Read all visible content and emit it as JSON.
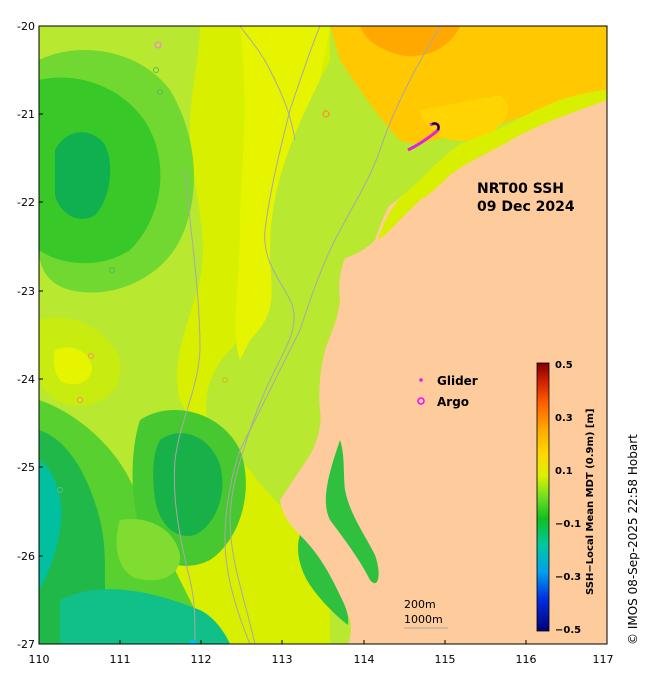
{
  "map": {
    "title_line1": "NRT00 SSH",
    "title_line2": "09 Dec 2024",
    "copyright": "© IMOS 08-Sep-2025 22:58 Hobart",
    "lon_ticks": [
      "110",
      "111",
      "112",
      "113",
      "114",
      "115",
      "116",
      "117"
    ],
    "lat_ticks": [
      "-20",
      "-21",
      "-22",
      "-23",
      "-24",
      "-25",
      "-26",
      "-27"
    ],
    "lon_range": [
      110,
      117
    ],
    "lat_range": [
      -27,
      -20
    ],
    "legend": {
      "glider_label": "Glider",
      "argo_label": "Argo",
      "glider_color": "#e020e0",
      "argo_color": "#ff00ff"
    },
    "contours": {
      "label_200": "200m",
      "label_1000": "1000m"
    },
    "colorbar": {
      "title": "SSH−Local Mean MDT (0.9m) [m]",
      "ticks": [
        "0.5",
        "0.3",
        "0.1",
        "−0.1",
        "−0.3",
        "−0.5"
      ],
      "range": [
        -0.5,
        0.5
      ]
    },
    "colors": {
      "land": "#fdcb9c",
      "contour_line": "#a8a8a8"
    }
  }
}
